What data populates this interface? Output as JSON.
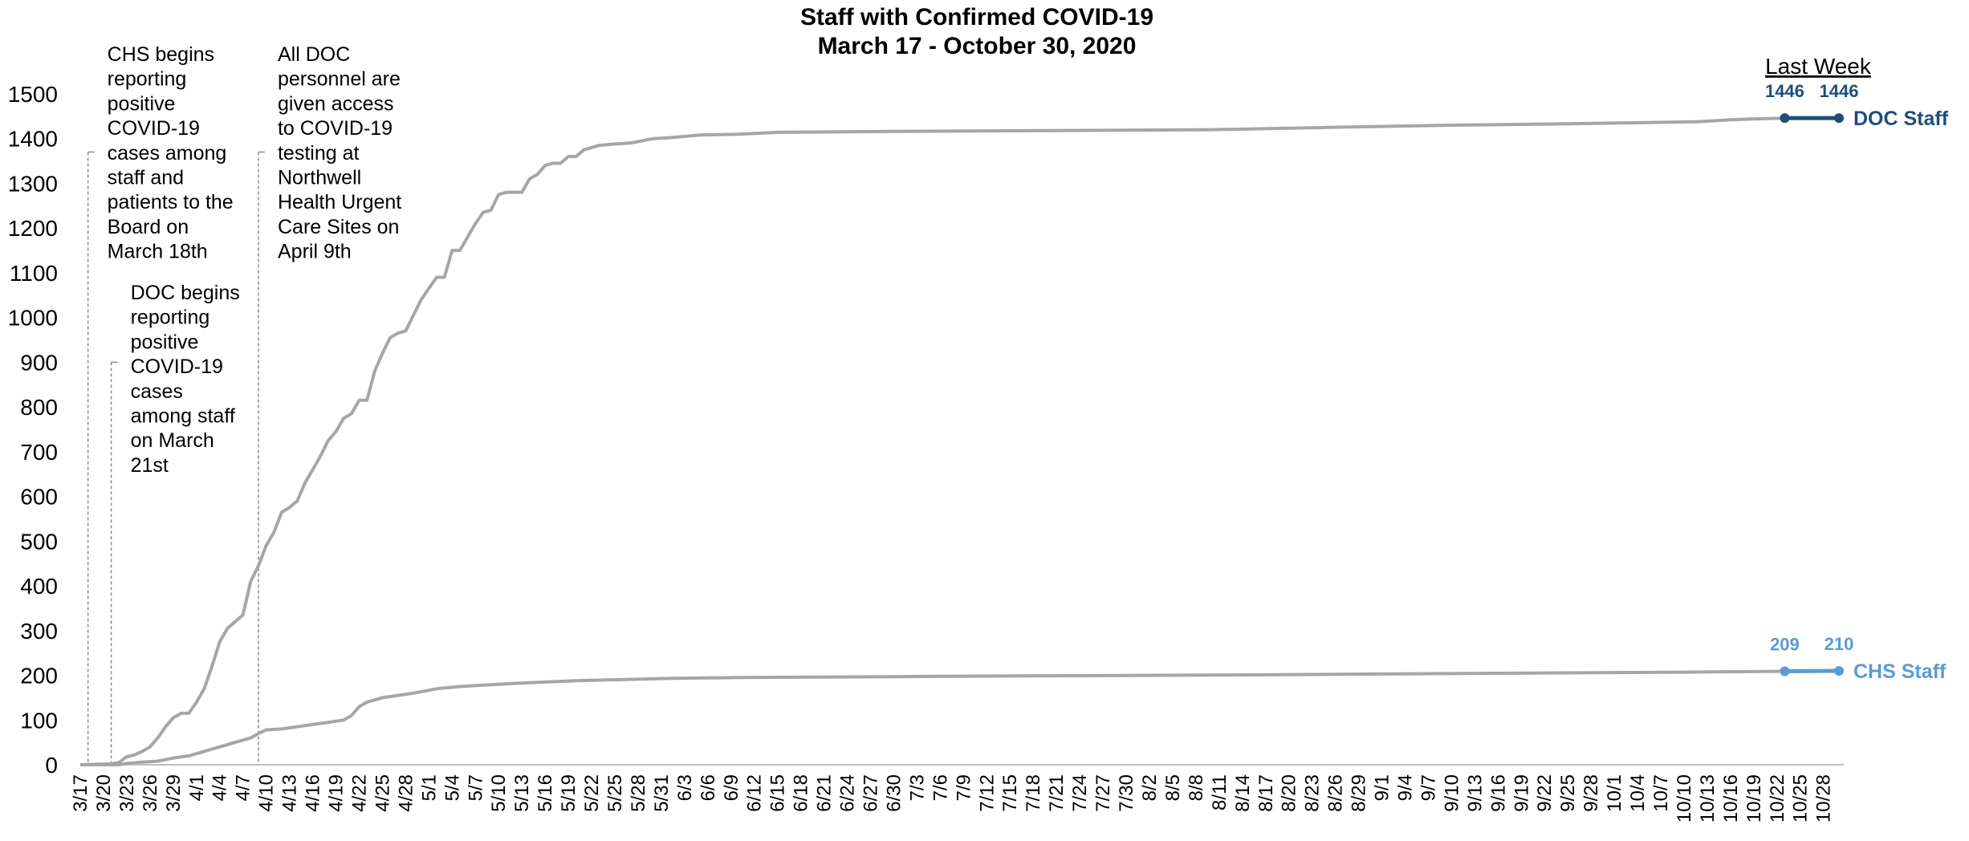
{
  "chart_data": {
    "type": "line",
    "title": "Staff with Confirmed COVID-19",
    "subtitle": "March 17 - October 30, 2020",
    "ylim": [
      0,
      1500
    ],
    "yticks": [
      0,
      100,
      200,
      300,
      400,
      500,
      600,
      700,
      800,
      900,
      1000,
      1100,
      1200,
      1300,
      1400,
      1500
    ],
    "grid": false,
    "x_start": "2020-03-17",
    "x_end": "2020-10-30",
    "x_tick_labels": [
      "3/17",
      "3/20",
      "3/23",
      "3/26",
      "3/29",
      "4/1",
      "4/4",
      "4/7",
      "4/10",
      "4/13",
      "4/16",
      "4/19",
      "4/22",
      "4/25",
      "4/28",
      "5/1",
      "5/4",
      "5/7",
      "5/10",
      "5/13",
      "5/16",
      "5/19",
      "5/22",
      "5/25",
      "5/28",
      "5/31",
      "6/3",
      "6/6",
      "6/9",
      "6/12",
      "6/15",
      "6/18",
      "6/21",
      "6/24",
      "6/27",
      "6/30",
      "7/3",
      "7/6",
      "7/9",
      "7/12",
      "7/15",
      "7/18",
      "7/21",
      "7/24",
      "7/27",
      "7/30",
      "8/2",
      "8/5",
      "8/8",
      "8/11",
      "8/14",
      "8/17",
      "8/20",
      "8/23",
      "8/26",
      "8/29",
      "9/1",
      "9/4",
      "9/7",
      "9/10",
      "9/13",
      "9/16",
      "9/19",
      "9/22",
      "9/25",
      "9/28",
      "10/1",
      "10/4",
      "10/7",
      "10/10",
      "10/13",
      "10/16",
      "10/19",
      "10/22",
      "10/25",
      "10/28"
    ],
    "series": [
      {
        "name": "DOC Staff",
        "color": "#1f4e79",
        "points": [
          [
            "2020-03-17",
            0
          ],
          [
            "2020-03-19",
            1
          ],
          [
            "2020-03-21",
            2
          ],
          [
            "2020-03-22",
            5
          ],
          [
            "2020-03-23",
            18
          ],
          [
            "2020-03-24",
            22
          ],
          [
            "2020-03-25",
            30
          ],
          [
            "2020-03-26",
            40
          ],
          [
            "2020-03-27",
            60
          ],
          [
            "2020-03-28",
            85
          ],
          [
            "2020-03-29",
            105
          ],
          [
            "2020-03-30",
            115
          ],
          [
            "2020-03-31",
            115
          ],
          [
            "2020-04-01",
            140
          ],
          [
            "2020-04-02",
            170
          ],
          [
            "2020-04-03",
            220
          ],
          [
            "2020-04-04",
            275
          ],
          [
            "2020-04-05",
            305
          ],
          [
            "2020-04-06",
            320
          ],
          [
            "2020-04-07",
            335
          ],
          [
            "2020-04-08",
            410
          ],
          [
            "2020-04-09",
            445
          ],
          [
            "2020-04-10",
            490
          ],
          [
            "2020-04-11",
            520
          ],
          [
            "2020-04-12",
            565
          ],
          [
            "2020-04-13",
            575
          ],
          [
            "2020-04-14",
            590
          ],
          [
            "2020-04-15",
            630
          ],
          [
            "2020-04-16",
            660
          ],
          [
            "2020-04-17",
            690
          ],
          [
            "2020-04-18",
            725
          ],
          [
            "2020-04-19",
            745
          ],
          [
            "2020-04-20",
            775
          ],
          [
            "2020-04-21",
            785
          ],
          [
            "2020-04-22",
            815
          ],
          [
            "2020-04-23",
            815
          ],
          [
            "2020-04-24",
            880
          ],
          [
            "2020-04-25",
            920
          ],
          [
            "2020-04-26",
            955
          ],
          [
            "2020-04-27",
            965
          ],
          [
            "2020-04-28",
            970
          ],
          [
            "2020-04-29",
            1005
          ],
          [
            "2020-04-30",
            1040
          ],
          [
            "2020-05-01",
            1065
          ],
          [
            "2020-05-02",
            1090
          ],
          [
            "2020-05-03",
            1090
          ],
          [
            "2020-05-04",
            1150
          ],
          [
            "2020-05-05",
            1150
          ],
          [
            "2020-05-06",
            1180
          ],
          [
            "2020-05-07",
            1210
          ],
          [
            "2020-05-08",
            1235
          ],
          [
            "2020-05-09",
            1240
          ],
          [
            "2020-05-10",
            1275
          ],
          [
            "2020-05-11",
            1280
          ],
          [
            "2020-05-12",
            1280
          ],
          [
            "2020-05-13",
            1280
          ],
          [
            "2020-05-14",
            1310
          ],
          [
            "2020-05-15",
            1320
          ],
          [
            "2020-05-16",
            1340
          ],
          [
            "2020-05-17",
            1345
          ],
          [
            "2020-05-18",
            1345
          ],
          [
            "2020-05-19",
            1360
          ],
          [
            "2020-05-20",
            1360
          ],
          [
            "2020-05-21",
            1375
          ],
          [
            "2020-05-22",
            1380
          ],
          [
            "2020-05-23",
            1385
          ],
          [
            "2020-05-25",
            1388
          ],
          [
            "2020-05-27",
            1390
          ],
          [
            "2020-05-30",
            1400
          ],
          [
            "2020-06-01",
            1402
          ],
          [
            "2020-06-05",
            1408
          ],
          [
            "2020-06-10",
            1410
          ],
          [
            "2020-06-15",
            1414
          ],
          [
            "2020-06-30",
            1416
          ],
          [
            "2020-07-20",
            1418
          ],
          [
            "2020-08-10",
            1420
          ],
          [
            "2020-08-25",
            1425
          ],
          [
            "2020-09-10",
            1430
          ],
          [
            "2020-09-25",
            1433
          ],
          [
            "2020-10-05",
            1436
          ],
          [
            "2020-10-12",
            1438
          ],
          [
            "2020-10-16",
            1442
          ],
          [
            "2020-10-19",
            1444
          ],
          [
            "2020-10-23",
            1446
          ]
        ],
        "last_week": [
          [
            "2020-10-23",
            1446
          ],
          [
            "2020-10-30",
            1446
          ]
        ],
        "last_week_labels": [
          "1446",
          "1446"
        ]
      },
      {
        "name": "CHS Staff",
        "color": "#5b9bd5",
        "points": [
          [
            "2020-03-17",
            0
          ],
          [
            "2020-03-22",
            0
          ],
          [
            "2020-03-23",
            3
          ],
          [
            "2020-03-25",
            6
          ],
          [
            "2020-03-27",
            8
          ],
          [
            "2020-03-29",
            15
          ],
          [
            "2020-03-31",
            20
          ],
          [
            "2020-04-02",
            30
          ],
          [
            "2020-04-04",
            40
          ],
          [
            "2020-04-06",
            50
          ],
          [
            "2020-04-08",
            60
          ],
          [
            "2020-04-09",
            70
          ],
          [
            "2020-04-10",
            78
          ],
          [
            "2020-04-12",
            80
          ],
          [
            "2020-04-14",
            85
          ],
          [
            "2020-04-16",
            90
          ],
          [
            "2020-04-18",
            95
          ],
          [
            "2020-04-20",
            100
          ],
          [
            "2020-04-21",
            110
          ],
          [
            "2020-04-22",
            130
          ],
          [
            "2020-04-23",
            140
          ],
          [
            "2020-04-25",
            150
          ],
          [
            "2020-04-27",
            155
          ],
          [
            "2020-04-29",
            160
          ],
          [
            "2020-05-02",
            170
          ],
          [
            "2020-05-05",
            175
          ],
          [
            "2020-05-08",
            178
          ],
          [
            "2020-05-12",
            182
          ],
          [
            "2020-05-16",
            185
          ],
          [
            "2020-05-20",
            188
          ],
          [
            "2020-05-25",
            190
          ],
          [
            "2020-06-01",
            193
          ],
          [
            "2020-06-10",
            195
          ],
          [
            "2020-06-30",
            197
          ],
          [
            "2020-07-20",
            199
          ],
          [
            "2020-08-15",
            201
          ],
          [
            "2020-09-01",
            203
          ],
          [
            "2020-09-20",
            205
          ],
          [
            "2020-10-10",
            207
          ],
          [
            "2020-10-23",
            209
          ]
        ],
        "last_week": [
          [
            "2020-10-23",
            209
          ],
          [
            "2020-10-30",
            210
          ]
        ],
        "last_week_labels": [
          "209",
          "210"
        ]
      }
    ],
    "annotations": [
      {
        "date": "2020-03-18",
        "y_top": 1370,
        "lines": [
          "CHS begins",
          "reporting",
          "positive",
          "COVID-19",
          "cases among",
          "staff and",
          "patients to the",
          "Board on",
          "March 18th"
        ]
      },
      {
        "date": "2020-03-21",
        "y_top": 900,
        "lines": [
          "DOC begins",
          "reporting",
          "positive",
          "COVID-19",
          "cases",
          "among staff",
          "on March",
          "21st"
        ]
      },
      {
        "date": "2020-04-09",
        "y_top": 1370,
        "lines": [
          "All DOC",
          "personnel are",
          "given access",
          "to COVID-19",
          "testing at",
          "Northwell",
          "Health Urgent",
          "Care Sites on",
          "April 9th"
        ]
      }
    ],
    "last_week_label": "Last Week"
  }
}
